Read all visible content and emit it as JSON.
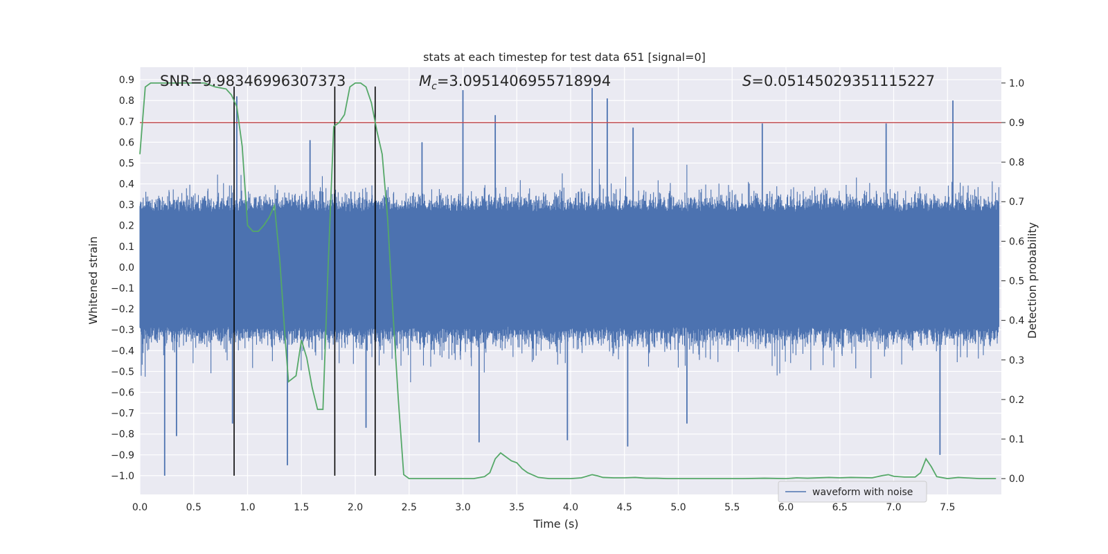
{
  "chart_data": {
    "type": "line",
    "title": "stats at each timestep for test data 651 [signal=0]",
    "xlabel": "Time (s)",
    "ylabel": "Whitened strain",
    "y2label": "Detection probability",
    "xlim": [
      0.0,
      8.0
    ],
    "ylim": [
      -1.09,
      0.96
    ],
    "y2lim": [
      -0.04,
      1.04
    ],
    "x_ticks": [
      0.0,
      0.5,
      1.0,
      1.5,
      2.0,
      2.5,
      3.0,
      3.5,
      4.0,
      4.5,
      5.0,
      5.5,
      6.0,
      6.5,
      7.0,
      7.5
    ],
    "x_tick_labels": [
      "0.0",
      "0.5",
      "1.0",
      "1.5",
      "2.0",
      "2.5",
      "3.0",
      "3.5",
      "4.0",
      "4.5",
      "5.0",
      "5.5",
      "6.0",
      "6.5",
      "7.0",
      "7.5"
    ],
    "y_ticks": [
      -1.0,
      -0.9,
      -0.8,
      -0.7,
      -0.6,
      -0.5,
      -0.4,
      -0.3,
      -0.2,
      -0.1,
      0.0,
      0.1,
      0.2,
      0.3,
      0.4,
      0.5,
      0.6,
      0.7,
      0.8,
      0.9
    ],
    "y_tick_labels": [
      "−1.0",
      "−0.9",
      "−0.8",
      "−0.7",
      "−0.6",
      "−0.5",
      "−0.4",
      "−0.3",
      "−0.2",
      "−0.1",
      "0.0",
      "0.1",
      "0.2",
      "0.3",
      "0.4",
      "0.5",
      "0.6",
      "0.7",
      "0.8",
      "0.9"
    ],
    "y2_ticks": [
      0.0,
      0.1,
      0.2,
      0.3,
      0.4,
      0.5,
      0.6,
      0.7,
      0.8,
      0.9,
      1.0
    ],
    "y2_tick_labels": [
      "0.0",
      "0.1",
      "0.2",
      "0.3",
      "0.4",
      "0.5",
      "0.6",
      "0.7",
      "0.8",
      "0.9",
      "1.0"
    ],
    "annotations": {
      "snr": "SNR=9.98346996307373",
      "mc_symbol": "M",
      "mc_sub": "c",
      "mc_value": "=3.0951406955718994",
      "s_symbol": "S",
      "s_value": "=0.05145029351115227"
    },
    "threshold": {
      "value": 0.9,
      "axis": "y2",
      "color": "#c44e52"
    },
    "event_lines": {
      "x": [
        0.875,
        1.81,
        2.185
      ],
      "color": "#000000"
    },
    "series": [
      {
        "name": "waveform with noise",
        "axis": "y",
        "color": "#4c72b0",
        "kind": "noise",
        "typical_amplitude": 0.38,
        "spikes": [
          {
            "x": 0.23,
            "y": -1.0
          },
          {
            "x": 0.34,
            "y": -0.81
          },
          {
            "x": 0.86,
            "y": -0.75
          },
          {
            "x": 0.9,
            "y": 0.82
          },
          {
            "x": 1.37,
            "y": -0.95
          },
          {
            "x": 2.1,
            "y": -0.77
          },
          {
            "x": 3.0,
            "y": 0.85
          },
          {
            "x": 3.3,
            "y": 0.73
          },
          {
            "x": 3.15,
            "y": -0.84
          },
          {
            "x": 3.97,
            "y": -0.83
          },
          {
            "x": 4.2,
            "y": 0.86
          },
          {
            "x": 4.34,
            "y": 0.81
          },
          {
            "x": 4.53,
            "y": -0.86
          },
          {
            "x": 4.58,
            "y": 0.67
          },
          {
            "x": 5.08,
            "y": -0.75
          },
          {
            "x": 5.78,
            "y": 0.69
          },
          {
            "x": 7.43,
            "y": -0.9
          },
          {
            "x": 7.55,
            "y": 0.8
          },
          {
            "x": 6.93,
            "y": 0.69
          },
          {
            "x": 2.62,
            "y": 0.6
          },
          {
            "x": 1.58,
            "y": 0.61
          }
        ]
      },
      {
        "name": "detection probability",
        "axis": "y2",
        "color": "#55a868",
        "x": [
          0.0,
          0.05,
          0.1,
          0.2,
          0.3,
          0.4,
          0.5,
          0.6,
          0.7,
          0.8,
          0.85,
          0.9,
          0.95,
          1.0,
          1.05,
          1.1,
          1.15,
          1.2,
          1.25,
          1.3,
          1.35,
          1.38,
          1.45,
          1.5,
          1.55,
          1.6,
          1.65,
          1.7,
          1.75,
          1.8,
          1.85,
          1.9,
          1.95,
          2.0,
          2.05,
          2.1,
          2.15,
          2.2,
          2.25,
          2.3,
          2.35,
          2.4,
          2.45,
          2.5,
          2.6,
          2.7,
          2.8,
          2.9,
          3.0,
          3.1,
          3.2,
          3.25,
          3.3,
          3.35,
          3.4,
          3.45,
          3.5,
          3.55,
          3.6,
          3.7,
          3.8,
          3.9,
          4.0,
          4.1,
          4.2,
          4.25,
          4.3,
          4.4,
          4.5,
          4.6,
          4.7,
          4.8,
          4.9,
          5.0,
          5.2,
          5.4,
          5.6,
          5.8,
          6.0,
          6.1,
          6.2,
          6.4,
          6.5,
          6.6,
          6.8,
          6.9,
          6.95,
          7.0,
          7.1,
          7.2,
          7.25,
          7.3,
          7.35,
          7.4,
          7.5,
          7.6,
          7.8,
          7.95
        ],
        "y": [
          0.82,
          0.99,
          1.0,
          1.0,
          1.0,
          1.0,
          1.0,
          1.0,
          0.99,
          0.985,
          0.97,
          0.94,
          0.84,
          0.64,
          0.625,
          0.625,
          0.64,
          0.66,
          0.69,
          0.55,
          0.35,
          0.245,
          0.26,
          0.35,
          0.305,
          0.23,
          0.175,
          0.175,
          0.55,
          0.89,
          0.9,
          0.92,
          0.99,
          1.0,
          1.0,
          0.99,
          0.95,
          0.88,
          0.82,
          0.66,
          0.42,
          0.2,
          0.01,
          0.0,
          0.0,
          0.0,
          0.0,
          0.0,
          0.0,
          0.0,
          0.005,
          0.015,
          0.05,
          0.065,
          0.055,
          0.045,
          0.04,
          0.025,
          0.015,
          0.003,
          0.0,
          0.0,
          0.0,
          0.002,
          0.01,
          0.007,
          0.003,
          0.002,
          0.002,
          0.003,
          0.001,
          0.001,
          0.0,
          0.0,
          0.0,
          0.0,
          0.0,
          0.001,
          0.0,
          0.002,
          0.001,
          0.003,
          0.002,
          0.003,
          0.002,
          0.008,
          0.01,
          0.006,
          0.004,
          0.004,
          0.015,
          0.05,
          0.03,
          0.005,
          0.0,
          0.003,
          0.0,
          0.0
        ]
      }
    ],
    "legend": {
      "label": "waveform with noise",
      "location": "lower-right"
    }
  }
}
